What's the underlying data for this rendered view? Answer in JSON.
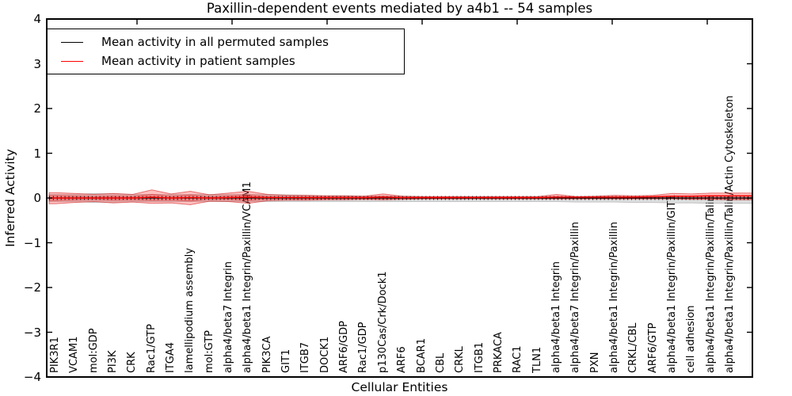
{
  "chart_data": {
    "type": "line",
    "title": "Paxillin-dependent events mediated by a4b1 -- 54 samples",
    "xlabel": "Cellular Entities",
    "ylabel": "Inferred Activity",
    "ylim": [
      -4,
      4
    ],
    "yticks": [
      4,
      3,
      2,
      1,
      0,
      -1,
      -2,
      -3,
      -4
    ],
    "ytick_labels": [
      "4",
      "3",
      "2",
      "1",
      "0",
      "−1",
      "−2",
      "−3",
      "−4"
    ],
    "grid": false,
    "legend_position": "upper left",
    "categories": [
      "PIK3R1",
      "VCAM1",
      "mol:GDP",
      "PI3K",
      "CRK",
      "Rac1/GTP",
      "ITGA4",
      "lamellipodium assembly",
      "mol:GTP",
      "alpha4/beta7 Integrin",
      "alpha4/beta1 Integrin/Paxillin/VCAM1",
      "PIK3CA",
      "GIT1",
      "ITGB7",
      "DOCK1",
      "ARF6/GDP",
      "Rac1/GDP",
      "p130Cas/Crk/Dock1",
      "ARF6",
      "BCAR1",
      "CBL",
      "CRKL",
      "ITGB1",
      "PRKACA",
      "RAC1",
      "TLN1",
      "alpha4/beta1 Integrin",
      "alpha4/beta7 Integrin/Paxillin",
      "PXN",
      "alpha4/beta1 Integrin/Paxillin",
      "CRKL/CBL",
      "ARF6/GTP",
      "alpha4/beta1 Integrin/Paxillin/GIT1",
      "cell adhesion",
      "alpha4/beta1 Integrin/Paxillin/Talin",
      "alpha4/beta1 Integrin/Paxillin/Talin/Actin Cytoskeleton"
    ],
    "series": [
      {
        "name": "Mean activity in all permuted samples",
        "color": "#000000",
        "marker": "plus",
        "values": [
          0,
          0,
          0,
          0,
          0,
          0,
          0,
          0,
          0,
          0,
          0,
          0,
          0,
          0,
          0,
          0,
          0,
          0,
          0,
          0,
          0,
          0,
          0,
          0,
          0,
          0,
          0,
          0,
          0,
          0,
          0,
          0,
          0,
          0,
          0,
          0
        ]
      },
      {
        "name": "Mean activity in patient samples",
        "color": "#ff0000",
        "marker": "none",
        "values": [
          0,
          0,
          0,
          0,
          0,
          0.02,
          0,
          0.01,
          0,
          0.01,
          0.02,
          0.01,
          0.01,
          0.01,
          0.01,
          0.01,
          0.01,
          0.02,
          0.01,
          0.01,
          0.01,
          0.01,
          0.01,
          0.01,
          0.01,
          0.01,
          0.02,
          0.02,
          0.02,
          0.02,
          0.02,
          0.03,
          0.04,
          0.04,
          0.05,
          0.05
        ]
      }
    ],
    "bands": [
      {
        "name": "permuted-samples-range",
        "color": "#919191",
        "opacity": 0.3,
        "upper": [
          0.08,
          0.08,
          0.1,
          0.09,
          0.08,
          0.08,
          0.08,
          0.08,
          0.08,
          0.08,
          0.08,
          0.08,
          0.07,
          0.06,
          0.05,
          0.05,
          0.04,
          0.04,
          0.04,
          0.03,
          0.03,
          0.03,
          0.03,
          0.03,
          0.03,
          0.03,
          0.03,
          0.03,
          0.03,
          0.03,
          0.03,
          0.03,
          0.03,
          0.03,
          0.04,
          0.04
        ],
        "lower": [
          -0.08,
          -0.08,
          -0.1,
          -0.09,
          -0.08,
          -0.08,
          -0.08,
          -0.08,
          -0.08,
          -0.08,
          -0.08,
          -0.08,
          -0.08,
          -0.08,
          -0.08,
          -0.08,
          -0.08,
          -0.08,
          -0.08,
          -0.08,
          -0.08,
          -0.08,
          -0.08,
          -0.08,
          -0.08,
          -0.08,
          -0.08,
          -0.09,
          -0.09,
          -0.09,
          -0.1,
          -0.1,
          -0.11,
          -0.11,
          -0.12,
          -0.12
        ]
      },
      {
        "name": "patient-samples-range",
        "color": "#ff2d2d",
        "opacity": 0.3,
        "upper": [
          0.12,
          0.1,
          0.08,
          0.1,
          0.08,
          0.18,
          0.09,
          0.15,
          0.07,
          0.11,
          0.15,
          0.08,
          0.06,
          0.06,
          0.05,
          0.05,
          0.04,
          0.09,
          0.04,
          0.03,
          0.03,
          0.03,
          0.03,
          0.03,
          0.03,
          0.03,
          0.08,
          0.03,
          0.04,
          0.06,
          0.05,
          0.06,
          0.1,
          0.09,
          0.11,
          0.11
        ],
        "lower": [
          -0.13,
          -0.1,
          -0.08,
          -0.11,
          -0.09,
          -0.12,
          -0.11,
          -0.15,
          -0.07,
          -0.08,
          -0.12,
          -0.06,
          -0.05,
          -0.05,
          -0.04,
          -0.04,
          -0.03,
          -0.04,
          -0.03,
          -0.02,
          -0.02,
          -0.02,
          -0.02,
          -0.02,
          -0.02,
          -0.02,
          -0.02,
          -0.02,
          -0.02,
          -0.02,
          -0.02,
          -0.02,
          -0.02,
          -0.03,
          -0.03,
          -0.04
        ]
      }
    ]
  }
}
